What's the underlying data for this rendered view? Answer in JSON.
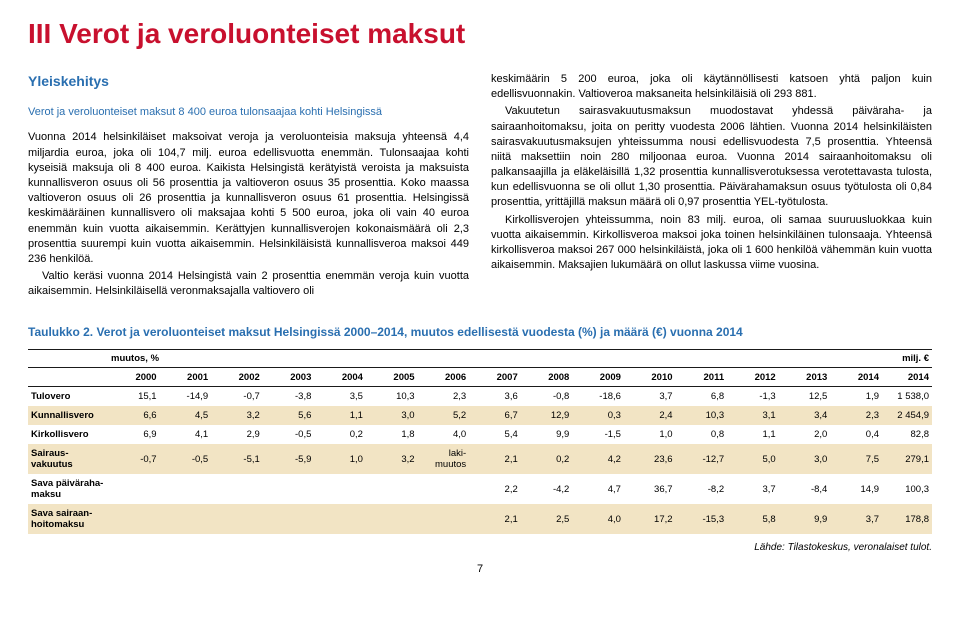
{
  "title": "III Verot ja veroluonteiset maksut",
  "sub_heading1": "Yleiskehitys",
  "sub_heading2": "Verot ja veroluonteiset maksut 8 400 euroa tulonsaajaa kohti Helsingissä",
  "col1_p1": "Vuonna 2014 helsinkiläiset maksoivat veroja ja veroluonteisia maksuja yhteensä 4,4 miljardia euroa, joka oli 104,7 milj. euroa edellisvuotta enemmän. Tulonsaajaa kohti kyseisiä maksuja oli 8 400 euroa. Kaikista Helsingistä kerätyistä veroista ja maksuista kunnallisveron osuus oli 56 prosenttia ja valtioveron osuus 35 prosenttia. Koko maassa valtioveron osuus oli 26 prosenttia ja kunnallisveron osuus 61 prosenttia. Helsingissä keskimääräinen kunnallisvero oli maksajaa kohti 5 500 euroa, joka oli vain 40 euroa enemmän kuin vuotta aikaisemmin. Kerättyjen kunnallisverojen kokonaismäärä oli 2,3 prosenttia suurempi kuin vuotta aikaisemmin. Helsinkiläisistä kunnallisveroa maksoi 449 236 henkilöä.",
  "col1_p2": "Valtio keräsi vuonna 2014 Helsingistä vain 2 prosenttia enemmän veroja kuin vuotta aikaisemmin. Helsinkiläisellä veronmaksajalla valtiovero oli",
  "col2_p1": "keskimäärin 5 200 euroa, joka oli käytännöllisesti katsoen yhtä paljon kuin edellisvuonnakin. Valtioveroa maksaneita helsinkiläisiä oli 293 881.",
  "col2_p2": "Vakuutetun sairasvakuutusmaksun muodostavat yhdessä päiväraha- ja sairaanhoitomaksu, joita on peritty vuodesta 2006 lähtien. Vuonna 2014 helsinkiläisten sairasvakuutusmaksujen yhteissumma nousi edellisvuodesta 7,5 prosenttia. Yhteensä niitä maksettiin noin 280 miljoonaa euroa. Vuonna 2014 sairaanhoitomaksu oli palkansaajilla ja eläkeläisillä 1,32 prosenttia kunnallisverotuksessa verotettavasta tulosta, kun edellisvuonna se oli ollut 1,30 prosenttia. Päivärahamaksun osuus työtulosta oli 0,84 prosenttia, yrittäjillä maksun määrä oli 0,97 prosenttia YEL-työtulosta.",
  "col2_p3": "Kirkollisverojen yhteissumma, noin 83 milj. euroa, oli samaa suuruusluokkaa kuin vuotta aikaisemmin. Kirkollisveroa maksoi joka toinen helsinkiläinen tulonsaaja. Yhteensä kirkollisveroa maksoi 267 000 helsinkiläistä, joka oli 1 600 henkilöä vähemmän kuin vuotta aikaisemmin. Maksajien lukumäärä on ollut laskussa viime vuosina.",
  "table_caption": "Taulukko 2. Verot ja veroluonteiset maksut Helsingissä 2000–2014, muutos edellisestä vuodesta (%) ja määrä (€) vuonna 2014",
  "group_left": "muutos, %",
  "group_right": "milj. €",
  "years": [
    "2000",
    "2001",
    "2002",
    "2003",
    "2004",
    "2005",
    "2006",
    "2007",
    "2008",
    "2009",
    "2010",
    "2011",
    "2012",
    "2013",
    "2014",
    "2014"
  ],
  "rows": [
    {
      "label": "Tulovero",
      "cells": [
        "15,1",
        "-14,9",
        "-0,7",
        "-3,8",
        "3,5",
        "10,3",
        "2,3",
        "3,6",
        "-0,8",
        "-18,6",
        "3,7",
        "6,8",
        "-1,3",
        "12,5",
        "1,9",
        "1 538,0"
      ],
      "zebra": false
    },
    {
      "label": "Kunnallisvero",
      "cells": [
        "6,6",
        "4,5",
        "3,2",
        "5,6",
        "1,1",
        "3,0",
        "5,2",
        "6,7",
        "12,9",
        "0,3",
        "2,4",
        "10,3",
        "3,1",
        "3,4",
        "2,3",
        "2 454,9"
      ],
      "zebra": true
    },
    {
      "label": "Kirkollisvero",
      "cells": [
        "6,9",
        "4,1",
        "2,9",
        "-0,5",
        "0,2",
        "1,8",
        "4,0",
        "5,4",
        "9,9",
        "-1,5",
        "1,0",
        "0,8",
        "1,1",
        "2,0",
        "0,4",
        "82,8"
      ],
      "zebra": false
    },
    {
      "label": "Sairaus-vakuutus",
      "cells": [
        "-0,7",
        "-0,5",
        "-5,1",
        "-5,9",
        "1,0",
        "3,2",
        "laki-muutos",
        "2,1",
        "0,2",
        "4,2",
        "23,6",
        "-12,7",
        "5,0",
        "3,0",
        "7,5",
        "279,1"
      ],
      "zebra": true
    },
    {
      "label": "Sava päiväraha-maksu",
      "cells": [
        "",
        "",
        "",
        "",
        "",
        "",
        "",
        "2,2",
        "-4,2",
        "4,7",
        "36,7",
        "-8,2",
        "3,7",
        "-8,4",
        "14,9",
        "100,3"
      ],
      "zebra": false
    },
    {
      "label": "Sava sairaan-hoitomaksu",
      "cells": [
        "",
        "",
        "",
        "",
        "",
        "",
        "",
        "2,1",
        "2,5",
        "4,0",
        "17,2",
        "-15,3",
        "5,8",
        "9,9",
        "3,7",
        "178,8"
      ],
      "zebra": true
    }
  ],
  "source": "Lähde: Tilastokeskus, veronalaiset tulot.",
  "page_number": "7"
}
